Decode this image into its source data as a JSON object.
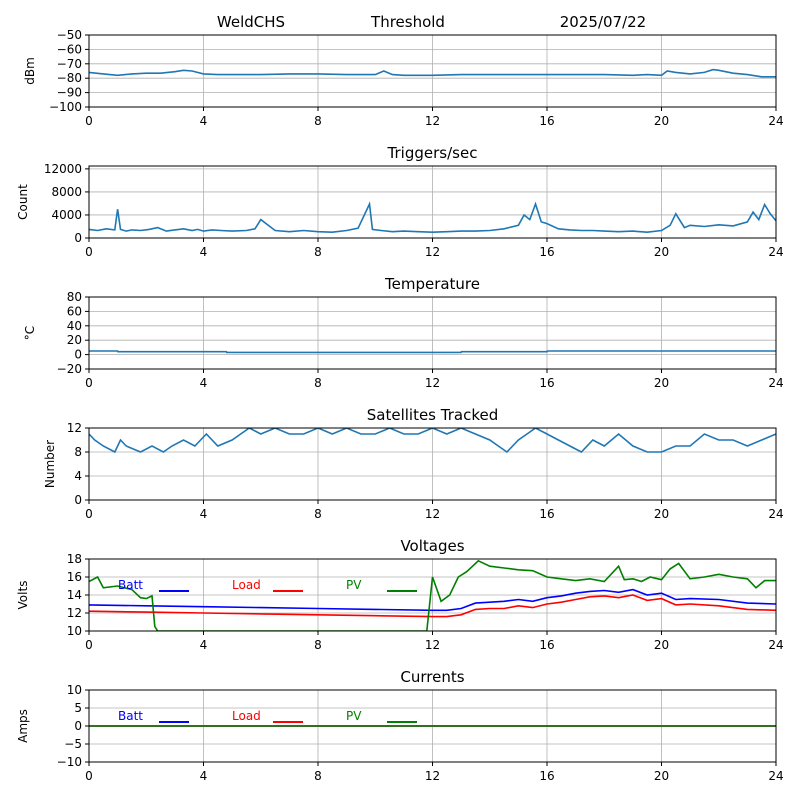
{
  "header": {
    "site": "WeldCHS",
    "mode": "Threshold",
    "date": "2025/07/22"
  },
  "chart_data": [
    {
      "type": "line",
      "title": "",
      "ylabel": "dBm",
      "xlim": [
        0,
        24
      ],
      "ylim": [
        -100,
        -50
      ],
      "xticks": [
        0,
        4,
        8,
        12,
        16,
        20,
        24
      ],
      "yticks": [
        -100,
        -90,
        -80,
        -70,
        -60,
        -50
      ],
      "grid": true,
      "series": [
        {
          "color": "#1f77b4",
          "x": [
            0,
            0.5,
            1,
            1.5,
            2,
            2.5,
            3,
            3.3,
            3.6,
            4,
            4.5,
            5,
            6,
            7,
            8,
            9,
            10,
            10.3,
            10.6,
            11,
            12,
            13,
            14,
            15,
            16,
            17,
            18,
            19,
            19.5,
            20,
            20.2,
            20.5,
            21,
            21.5,
            21.8,
            22,
            22.5,
            23,
            23.5,
            24
          ],
          "values": [
            -76,
            -77,
            -78,
            -77,
            -76.5,
            -76.5,
            -75.5,
            -74.5,
            -75,
            -77,
            -77.5,
            -77.5,
            -77.5,
            -77,
            -77,
            -77.5,
            -77.5,
            -75,
            -77.5,
            -78,
            -78,
            -77.5,
            -77.5,
            -77.5,
            -77.5,
            -77.5,
            -77.5,
            -78,
            -77.5,
            -78,
            -75,
            -76,
            -77,
            -76,
            -74,
            -74.5,
            -76.5,
            -77.5,
            -79,
            -79
          ]
        }
      ]
    },
    {
      "type": "line",
      "title": "Triggers/sec",
      "ylabel": "Count",
      "xlim": [
        0,
        24
      ],
      "ylim": [
        0,
        12500
      ],
      "xticks": [
        0,
        4,
        8,
        12,
        16,
        20,
        24
      ],
      "yticks": [
        0,
        4000,
        8000,
        12000
      ],
      "grid": true,
      "series": [
        {
          "color": "#1f77b4",
          "x": [
            0,
            0.3,
            0.6,
            0.9,
            1.0,
            1.1,
            1.3,
            1.5,
            1.8,
            2.1,
            2.4,
            2.7,
            3.0,
            3.3,
            3.6,
            3.8,
            4.0,
            4.3,
            4.6,
            5.0,
            5.5,
            5.8,
            6.0,
            6.5,
            7.0,
            7.5,
            8.0,
            8.5,
            9.0,
            9.4,
            9.8,
            9.9,
            10.2,
            10.6,
            11.0,
            11.5,
            12.0,
            12.5,
            13.0,
            13.5,
            14.0,
            14.5,
            15.0,
            15.2,
            15.4,
            15.6,
            15.8,
            16.0,
            16.4,
            16.8,
            17.2,
            17.6,
            18.0,
            18.5,
            19.0,
            19.5,
            20.0,
            20.3,
            20.5,
            20.8,
            21.0,
            21.5,
            22.0,
            22.5,
            23.0,
            23.2,
            23.4,
            23.6,
            23.8,
            24.0
          ],
          "values": [
            1500,
            1300,
            1600,
            1400,
            5000,
            1500,
            1200,
            1400,
            1300,
            1500,
            1800,
            1200,
            1400,
            1600,
            1300,
            1500,
            1200,
            1400,
            1300,
            1200,
            1300,
            1600,
            3200,
            1300,
            1100,
            1300,
            1100,
            1000,
            1300,
            1700,
            5900,
            1500,
            1300,
            1100,
            1200,
            1100,
            1000,
            1100,
            1200,
            1200,
            1300,
            1600,
            2200,
            4000,
            3200,
            5900,
            2800,
            2500,
            1600,
            1400,
            1300,
            1300,
            1200,
            1100,
            1200,
            1000,
            1300,
            2200,
            4200,
            1800,
            2200,
            2000,
            2300,
            2100,
            2800,
            4500,
            3200,
            5800,
            4200,
            3000
          ]
        }
      ]
    },
    {
      "type": "line",
      "title": "Temperature",
      "ylabel": "°C",
      "xlim": [
        0,
        24
      ],
      "ylim": [
        -20,
        80
      ],
      "xticks": [
        0,
        4,
        8,
        12,
        16,
        20,
        24
      ],
      "yticks": [
        -20,
        0,
        20,
        40,
        60,
        80
      ],
      "grid": true,
      "series": [
        {
          "color": "#1f77b4",
          "x": [
            0,
            1,
            1.01,
            4.8,
            4.81,
            13,
            13.01,
            16,
            16.01,
            24
          ],
          "values": [
            5,
            5,
            4,
            4,
            3,
            3,
            4,
            4,
            5,
            5
          ]
        }
      ]
    },
    {
      "type": "line",
      "title": "Satellites Tracked",
      "ylabel": "Number",
      "xlim": [
        0,
        24
      ],
      "ylim": [
        0,
        12
      ],
      "xticks": [
        0,
        4,
        8,
        12,
        16,
        20,
        24
      ],
      "yticks": [
        0,
        4,
        8,
        12
      ],
      "grid": true,
      "series": [
        {
          "color": "#1f77b4",
          "x": [
            0,
            0.2,
            0.5,
            0.9,
            1.1,
            1.3,
            1.8,
            2.2,
            2.6,
            2.9,
            3.3,
            3.7,
            3.9,
            4.1,
            4.5,
            5.0,
            5.3,
            5.6,
            6.0,
            6.5,
            7.0,
            7.5,
            8.0,
            8.5,
            9.0,
            9.5,
            10.0,
            10.5,
            11.0,
            11.5,
            12.0,
            12.5,
            13.0,
            13.5,
            14.0,
            14.3,
            14.6,
            15.0,
            15.3,
            15.6,
            16.0,
            16.4,
            16.8,
            17.2,
            17.6,
            18.0,
            18.5,
            19.0,
            19.5,
            20.0,
            20.5,
            21.0,
            21.5,
            22.0,
            22.5,
            23.0,
            23.5,
            24.0
          ],
          "values": [
            11,
            10,
            9,
            8,
            10,
            9,
            8,
            9,
            8,
            9,
            10,
            9,
            10,
            11,
            9,
            10,
            11,
            12,
            11,
            12,
            11,
            11,
            12,
            11,
            12,
            11,
            11,
            12,
            11,
            11,
            12,
            11,
            12,
            11,
            10,
            9,
            8,
            10,
            11,
            12,
            11,
            10,
            9,
            8,
            10,
            9,
            11,
            9,
            8,
            8,
            9,
            9,
            11,
            10,
            10,
            9,
            10,
            11
          ]
        }
      ]
    },
    {
      "type": "line",
      "title": "Voltages",
      "ylabel": "Volts",
      "xlim": [
        0,
        24
      ],
      "ylim": [
        10,
        18
      ],
      "xticks": [
        0,
        4,
        8,
        12,
        16,
        20,
        24
      ],
      "yticks": [
        10,
        12,
        14,
        16,
        18
      ],
      "grid": true,
      "legend": "top-left",
      "series": [
        {
          "name": "Batt",
          "color": "#0000ff",
          "x": [
            0,
            2,
            4,
            6,
            8,
            10,
            12,
            12.5,
            13,
            13.5,
            14,
            14.5,
            15,
            15.5,
            16,
            16.5,
            17,
            17.5,
            18,
            18.5,
            19,
            19.5,
            20,
            20.5,
            21,
            22,
            23,
            24
          ],
          "values": [
            12.9,
            12.8,
            12.7,
            12.6,
            12.5,
            12.4,
            12.3,
            12.3,
            12.5,
            13.1,
            13.2,
            13.3,
            13.5,
            13.3,
            13.7,
            13.9,
            14.2,
            14.4,
            14.5,
            14.3,
            14.6,
            14.0,
            14.2,
            13.5,
            13.6,
            13.5,
            13.1,
            13.0
          ]
        },
        {
          "name": "Load",
          "color": "#ff0000",
          "x": [
            0,
            2,
            4,
            6,
            8,
            10,
            12,
            12.5,
            13,
            13.5,
            14,
            14.5,
            15,
            15.5,
            16,
            16.5,
            17,
            17.5,
            18,
            18.5,
            19,
            19.5,
            20,
            20.5,
            21,
            22,
            23,
            24
          ],
          "values": [
            12.2,
            12.1,
            12.0,
            11.9,
            11.8,
            11.7,
            11.6,
            11.6,
            11.8,
            12.4,
            12.5,
            12.5,
            12.8,
            12.6,
            13.0,
            13.2,
            13.5,
            13.8,
            13.9,
            13.7,
            14.0,
            13.4,
            13.6,
            12.9,
            13.0,
            12.8,
            12.4,
            12.3
          ]
        },
        {
          "name": "PV",
          "color": "#008000",
          "x": [
            0,
            0.3,
            0.5,
            1.0,
            1.5,
            1.8,
            2.0,
            2.2,
            2.3,
            2.4,
            11.8,
            12.0,
            12.3,
            12.6,
            12.9,
            13.2,
            13.6,
            14.0,
            14.5,
            15.0,
            15.5,
            16.0,
            16.5,
            17.0,
            17.5,
            18.0,
            18.5,
            18.7,
            19.0,
            19.3,
            19.6,
            20.0,
            20.3,
            20.6,
            21.0,
            21.5,
            22.0,
            22.5,
            23.0,
            23.3,
            23.6,
            24.0
          ],
          "values": [
            15.5,
            16.0,
            14.8,
            15.0,
            14.6,
            13.7,
            13.6,
            13.9,
            10.5,
            10.0,
            10.0,
            16.0,
            13.3,
            14.0,
            16.0,
            16.6,
            17.8,
            17.2,
            17.0,
            16.8,
            16.7,
            16.0,
            15.8,
            15.6,
            15.8,
            15.5,
            17.2,
            15.7,
            15.8,
            15.5,
            16.0,
            15.7,
            16.9,
            17.5,
            15.8,
            16.0,
            16.3,
            16.0,
            15.8,
            14.8,
            15.6,
            15.6
          ]
        }
      ]
    },
    {
      "type": "line",
      "title": "Currents",
      "ylabel": "Amps",
      "xlim": [
        0,
        24
      ],
      "ylim": [
        -10,
        10
      ],
      "xticks": [
        0,
        4,
        8,
        12,
        16,
        20,
        24
      ],
      "yticks": [
        -10,
        -5,
        0,
        5,
        10
      ],
      "grid": true,
      "legend": "top-left",
      "series": [
        {
          "name": "Batt",
          "color": "#0000ff",
          "x": [
            0,
            24
          ],
          "values": [
            0,
            0
          ]
        },
        {
          "name": "Load",
          "color": "#ff0000",
          "x": [
            0,
            24
          ],
          "values": [
            0,
            0
          ]
        },
        {
          "name": "PV",
          "color": "#008000",
          "x": [
            0,
            24
          ],
          "values": [
            0,
            0
          ]
        }
      ]
    }
  ]
}
